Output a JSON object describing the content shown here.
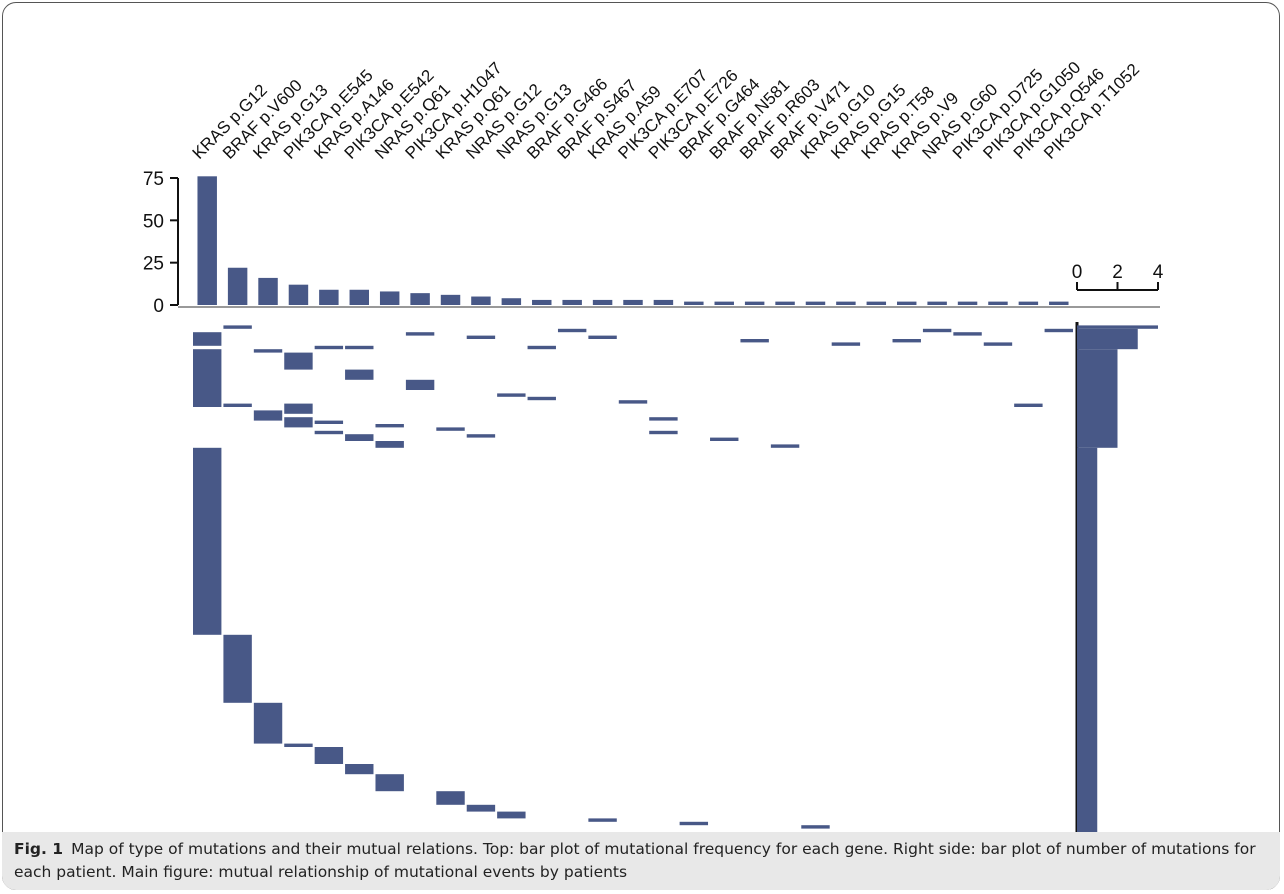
{
  "chart_data": {
    "type": "oncoplot",
    "categories": [
      "KRAS p.G12",
      "BRAF p.V600",
      "KRAS p.G13",
      "PIK3CA p.E545",
      "KRAS p.A146",
      "PIK3CA p.E542",
      "NRAS p.Q61",
      "PIK3CA p.H1047",
      "KRAS p.Q61",
      "NRAS p.G12",
      "NRAS p.G13",
      "BRAF p.G466",
      "BRAF p.S467",
      "KRAS p.A59",
      "PIK3CA p.E707",
      "PIK3CA p.E726",
      "BRAF p.G464",
      "BRAF p.N581",
      "BRAF p.R603",
      "BRAF p.V471",
      "KRAS p.G10",
      "KRAS p.G15",
      "KRAS p.T58",
      "KRAS p.V9",
      "NRAS p.G60",
      "PIK3CA p.D725",
      "PIK3CA p.G1050",
      "PIK3CA p.Q546",
      "PIK3CA p.T1052"
    ],
    "values": [
      76,
      22,
      16,
      12,
      9,
      9,
      8,
      7,
      6,
      5,
      4,
      3,
      3,
      3,
      3,
      3,
      2,
      2,
      2,
      2,
      2,
      2,
      2,
      2,
      2,
      2,
      2,
      2,
      2
    ],
    "ylim": [
      0,
      75
    ],
    "yticks": [
      0,
      25,
      50,
      75
    ],
    "color": "#485887",
    "patients_lim": [
      0,
      150
    ],
    "matrix": [
      {
        "gene": 0,
        "start": 3,
        "rows": 4
      },
      {
        "gene": 0,
        "start": 8,
        "rows": 17
      },
      {
        "gene": 0,
        "start": 37,
        "rows": 55
      },
      {
        "gene": 1,
        "start": 1,
        "rows": 1
      },
      {
        "gene": 1,
        "start": 24,
        "rows": 1
      },
      {
        "gene": 1,
        "start": 92,
        "rows": 20
      },
      {
        "gene": 2,
        "start": 8,
        "rows": 1
      },
      {
        "gene": 2,
        "start": 26,
        "rows": 3
      },
      {
        "gene": 2,
        "start": 112,
        "rows": 12
      },
      {
        "gene": 3,
        "start": 9,
        "rows": 5
      },
      {
        "gene": 3,
        "start": 24,
        "rows": 3
      },
      {
        "gene": 3,
        "start": 28,
        "rows": 3
      },
      {
        "gene": 3,
        "start": 124,
        "rows": 1
      },
      {
        "gene": 4,
        "start": 7,
        "rows": 1
      },
      {
        "gene": 4,
        "start": 29,
        "rows": 1
      },
      {
        "gene": 4,
        "start": 32,
        "rows": 1
      },
      {
        "gene": 4,
        "start": 125,
        "rows": 5
      },
      {
        "gene": 5,
        "start": 7,
        "rows": 1
      },
      {
        "gene": 5,
        "start": 14,
        "rows": 3
      },
      {
        "gene": 5,
        "start": 33,
        "rows": 2
      },
      {
        "gene": 5,
        "start": 130,
        "rows": 3
      },
      {
        "gene": 6,
        "start": 30,
        "rows": 1
      },
      {
        "gene": 6,
        "start": 35,
        "rows": 2
      },
      {
        "gene": 6,
        "start": 133,
        "rows": 5
      },
      {
        "gene": 7,
        "start": 3,
        "rows": 1
      },
      {
        "gene": 7,
        "start": 17,
        "rows": 3
      },
      {
        "gene": 8,
        "start": 31,
        "rows": 1
      },
      {
        "gene": 8,
        "start": 138,
        "rows": 4
      },
      {
        "gene": 9,
        "start": 4,
        "rows": 1
      },
      {
        "gene": 9,
        "start": 33,
        "rows": 1
      },
      {
        "gene": 9,
        "start": 142,
        "rows": 2
      },
      {
        "gene": 10,
        "start": 21,
        "rows": 1
      },
      {
        "gene": 10,
        "start": 144,
        "rows": 2
      },
      {
        "gene": 11,
        "start": 7,
        "rows": 1
      },
      {
        "gene": 11,
        "start": 22,
        "rows": 1
      },
      {
        "gene": 12,
        "start": 2,
        "rows": 1
      },
      {
        "gene": 13,
        "start": 4,
        "rows": 1
      },
      {
        "gene": 13,
        "start": 146,
        "rows": 1
      },
      {
        "gene": 14,
        "start": 23,
        "rows": 1
      },
      {
        "gene": 15,
        "start": 28,
        "rows": 1
      },
      {
        "gene": 15,
        "start": 32,
        "rows": 1
      },
      {
        "gene": 16,
        "start": 147,
        "rows": 1
      },
      {
        "gene": 17,
        "start": 34,
        "rows": 1
      },
      {
        "gene": 18,
        "start": 5,
        "rows": 1
      },
      {
        "gene": 19,
        "start": 36,
        "rows": 1
      },
      {
        "gene": 20,
        "start": 148,
        "rows": 1
      },
      {
        "gene": 21,
        "start": 6,
        "rows": 1
      },
      {
        "gene": 23,
        "start": 5,
        "rows": 1
      },
      {
        "gene": 24,
        "start": 2,
        "rows": 1
      },
      {
        "gene": 25,
        "start": 3,
        "rows": 1
      },
      {
        "gene": 26,
        "start": 6,
        "rows": 1
      },
      {
        "gene": 27,
        "start": 24,
        "rows": 1
      },
      {
        "gene": 28,
        "start": 2,
        "rows": 1
      }
    ],
    "patient_counts": [
      {
        "start": 1,
        "rows": 1,
        "value": 4
      },
      {
        "start": 2,
        "rows": 6,
        "value": 3
      },
      {
        "start": 8,
        "rows": 29,
        "value": 2
      },
      {
        "start": 37,
        "rows": 113,
        "value": 1
      }
    ],
    "xlim": [
      0,
      4
    ],
    "xticks": [
      0,
      2,
      4
    ]
  },
  "caption": {
    "label": "Fig. 1",
    "text": "Map of type of mutations and their mutual relations. Top: bar plot of mutational frequency for each gene. Right side: bar plot of number of mutations for each patient. Main figure: mutual relationship of mutational events by patients"
  }
}
